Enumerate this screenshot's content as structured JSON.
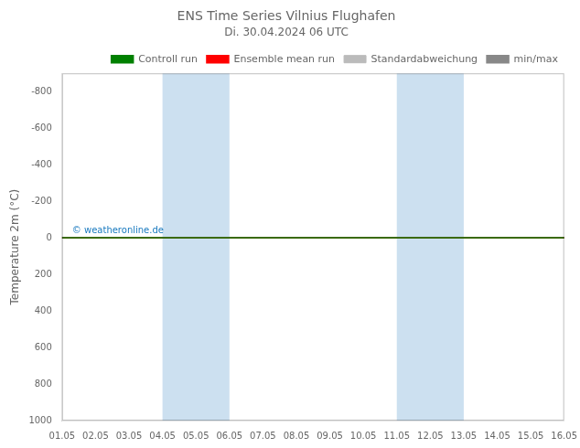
{
  "chart_data": {
    "type": "line",
    "title": "ENS Time Series Vilnius Flughafen",
    "subtitle": "Di. 30.04.2024 06 UTC",
    "categories": [
      "01.05",
      "02.05",
      "03.05",
      "04.05",
      "05.05",
      "06.05",
      "07.05",
      "08.05",
      "09.05",
      "10.05",
      "11.05",
      "12.05",
      "13.05",
      "14.05",
      "15.05",
      "16.05"
    ],
    "ylabel": "Temperature 2m (°C)",
    "series": [
      {
        "name": "min/max",
        "color": "#888888",
        "values": [
          0,
          0,
          0,
          0,
          0,
          0,
          0,
          0,
          0,
          0,
          0,
          0,
          0,
          0,
          0,
          0
        ]
      },
      {
        "name": "Standardabweichung",
        "color": "#bbbbbb",
        "type": "area",
        "values": [
          null,
          null,
          null,
          null,
          null,
          null,
          null,
          null,
          null,
          null,
          null,
          null,
          null,
          null,
          null,
          null
        ]
      },
      {
        "name": "Ensemble mean run",
        "color": "#ff0000",
        "values": [
          0,
          0,
          0,
          0,
          0,
          0,
          0,
          0,
          0,
          0,
          0,
          0,
          0,
          0,
          0,
          0
        ]
      },
      {
        "name": "Controll run",
        "color": "#008000",
        "values": [
          0,
          0,
          0,
          0,
          0,
          0,
          0,
          0,
          0,
          0,
          0,
          0,
          0,
          0,
          0,
          0
        ]
      }
    ],
    "ylim": [
      1000,
      -900
    ],
    "yticks": [
      -800,
      -600,
      -400,
      -200,
      0,
      200,
      400,
      600,
      800,
      1000
    ],
    "grid": false,
    "legend": "upper right",
    "shaded_regions": [
      {
        "x_start": "04.05",
        "x_end": "06.05",
        "color": "#cce0f0"
      },
      {
        "x_start": "11.05",
        "x_end": "13.05",
        "color": "#cce0f0"
      }
    ],
    "annotations": [
      {
        "text": "© weatheronline.de",
        "x": "01.05",
        "y": 0,
        "color": "#1a7abf"
      }
    ]
  }
}
